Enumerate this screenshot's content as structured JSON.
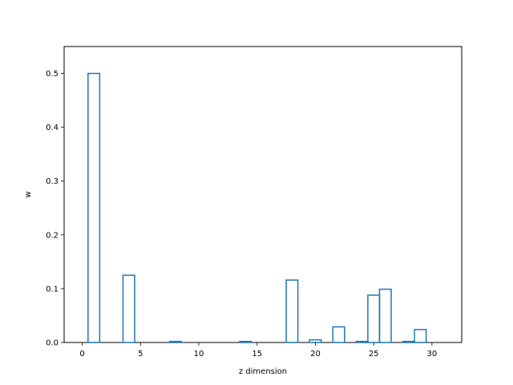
{
  "chart_data": {
    "type": "bar",
    "style": "step-outline",
    "title": "",
    "xlabel": "z dimension",
    "ylabel": "w",
    "xlim": [
      -1.55,
      32.55
    ],
    "ylim": [
      0,
      0.55
    ],
    "xticks": [
      0,
      5,
      10,
      15,
      20,
      25,
      30
    ],
    "yticks": [
      0.0,
      0.1,
      0.2,
      0.3,
      0.4,
      0.5
    ],
    "xtick_labels": [
      "0",
      "5",
      "10",
      "15",
      "20",
      "25",
      "30"
    ],
    "ytick_labels": [
      "0.0",
      "0.1",
      "0.2",
      "0.3",
      "0.4",
      "0.5"
    ],
    "grid": false,
    "legend": false,
    "x": [
      0,
      1,
      2,
      3,
      4,
      5,
      6,
      7,
      8,
      9,
      10,
      11,
      12,
      13,
      14,
      15,
      16,
      17,
      18,
      19,
      20,
      21,
      22,
      23,
      24,
      25,
      26,
      27,
      28,
      29,
      30,
      31
    ],
    "values": [
      0.0,
      0.5,
      0.0,
      0.0,
      0.125,
      0.0,
      0.0,
      0.0,
      0.002,
      0.0,
      0.0,
      0.0,
      0.0,
      0.0,
      0.002,
      0.0,
      0.0,
      0.0,
      0.116,
      0.0,
      0.005,
      0.0,
      0.029,
      0.0,
      0.002,
      0.088,
      0.099,
      0.0,
      0.002,
      0.024,
      0.0,
      0.0
    ],
    "color": "#1f77b4"
  }
}
